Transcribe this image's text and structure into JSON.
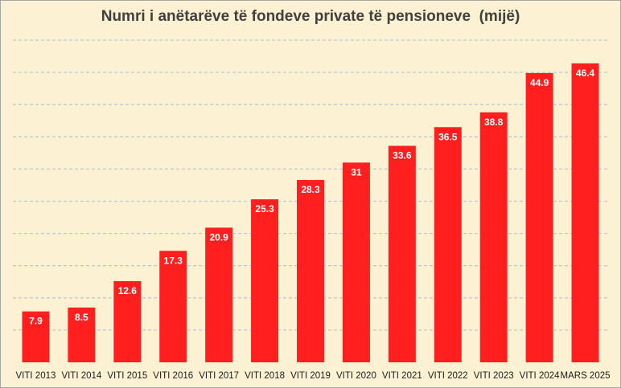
{
  "chart_data": {
    "type": "bar",
    "title": "Numri i anëtarëve të fondeve private të pensioneve  (mijë)",
    "categories": [
      "VITI 2013",
      "VITI 2014",
      "VITI 2015",
      "VITI 2016",
      "VITI 2017",
      "VITI 2018",
      "VITI 2019",
      "VITI 2020",
      "VITI 2021",
      "VITI 2022",
      "VITI 2023",
      "VITI 2024",
      "MARS 2025"
    ],
    "values": [
      7.9,
      8.5,
      12.6,
      17.3,
      20.9,
      25.3,
      28.3,
      31,
      33.6,
      36.5,
      38.8,
      44.9,
      46.4
    ],
    "value_labels": [
      "7.9",
      "8.5",
      "12.6",
      "17.3",
      "20.9",
      "25.3",
      "28.3",
      "31",
      "33.6",
      "36.5",
      "38.8",
      "44.9",
      "46.4"
    ],
    "xlabel": "",
    "ylabel": "",
    "ylim": [
      0,
      50
    ],
    "grid": true,
    "legend": "none",
    "colors": {
      "bar": "#ff1f1f",
      "background": "#fcf2d3",
      "grid": "#b8c7d9",
      "label": "#ffffff"
    }
  }
}
